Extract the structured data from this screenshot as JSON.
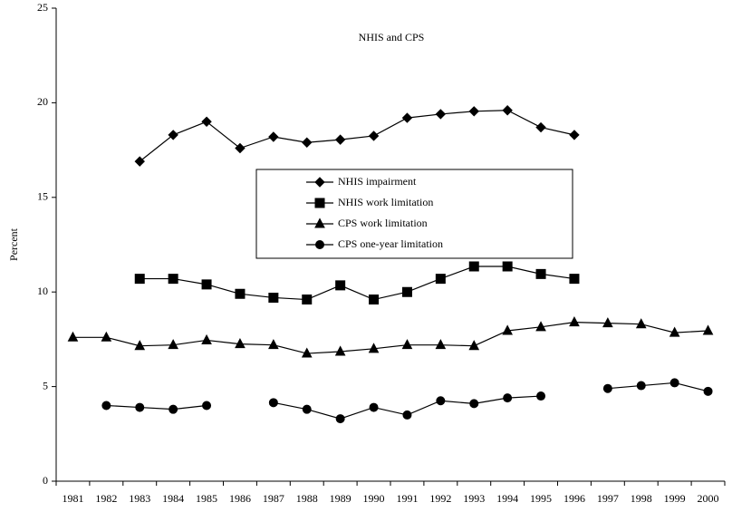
{
  "chart_data": {
    "type": "line",
    "title": "NHIS and CPS",
    "y_label": "Percent",
    "categories": [
      "1981",
      "1982",
      "1983",
      "1984",
      "1985",
      "1986",
      "1987",
      "1988",
      "1989",
      "1990",
      "1991",
      "1992",
      "1993",
      "1994",
      "1995",
      "1996",
      "1997",
      "1998",
      "1999",
      "2000"
    ],
    "ylim": [
      0,
      25
    ],
    "yticks": [
      0,
      5,
      10,
      15,
      20,
      25
    ],
    "grid": false,
    "legend": "center",
    "series": [
      {
        "name": "NHIS impairment",
        "color": "#000000",
        "marker": "diamond",
        "values": [
          null,
          null,
          16.9,
          18.3,
          19.0,
          17.6,
          18.2,
          17.9,
          18.05,
          18.25,
          19.2,
          19.4,
          19.55,
          19.6,
          18.7,
          18.3,
          null,
          null,
          null,
          null
        ]
      },
      {
        "name": "NHIS work limitation",
        "color": "#000000",
        "marker": "square",
        "values": [
          null,
          null,
          10.7,
          10.7,
          10.4,
          9.9,
          9.7,
          9.6,
          10.35,
          9.6,
          10.0,
          10.7,
          11.35,
          11.35,
          10.95,
          10.7,
          null,
          null,
          null,
          null
        ]
      },
      {
        "name": "CPS work limitation",
        "color": "#000000",
        "marker": "triangle",
        "values": [
          7.6,
          7.6,
          7.15,
          7.2,
          7.45,
          7.25,
          7.2,
          6.75,
          6.85,
          7.0,
          7.2,
          7.2,
          7.15,
          7.95,
          8.15,
          8.4,
          8.35,
          8.3,
          7.85,
          7.95
        ]
      },
      {
        "name": "CPS one-year limitation",
        "color": "#000000",
        "marker": "circle",
        "values": [
          null,
          4.0,
          3.9,
          3.8,
          4.0,
          null,
          4.15,
          3.8,
          3.3,
          3.9,
          3.5,
          4.25,
          4.1,
          4.4,
          4.5,
          null,
          4.9,
          5.05,
          5.2,
          4.75
        ]
      }
    ]
  }
}
